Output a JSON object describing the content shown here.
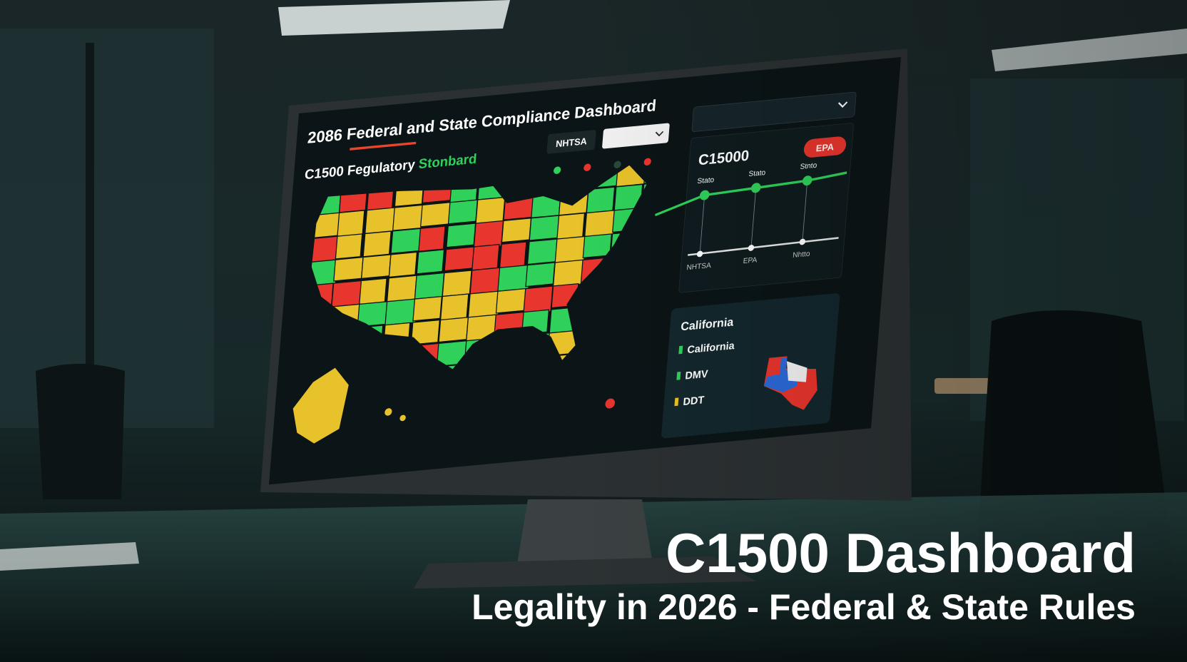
{
  "screen": {
    "title": "2086 Federal and State Compliance Dashboard",
    "subtitle": "C1500 Fegulatory",
    "subtitle_highlight": "Stonbard",
    "filter_tag": "NHTSA",
    "model": "C15000",
    "badge": "EPA",
    "chart_top_labels": [
      "Stato",
      "Stato",
      "Stnto"
    ],
    "chart_bottom_labels": [
      "NHTSA",
      "EPA",
      "Nhtto"
    ],
    "state_panel": {
      "title": "California",
      "items": [
        "California",
        "DMV",
        "DDT"
      ]
    }
  },
  "overlay": {
    "title": "C1500 Dashboard",
    "subtitle": "Legality in 2026 - Federal & State Rules"
  }
}
